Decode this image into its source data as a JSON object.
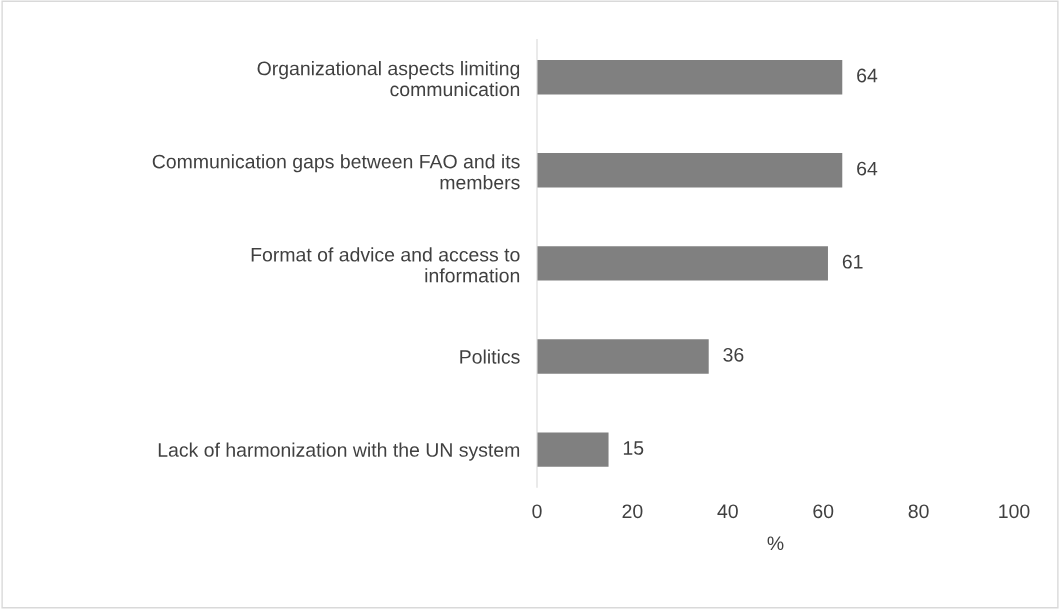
{
  "chart_data": {
    "type": "bar",
    "orientation": "horizontal",
    "categories": [
      "Organizational aspects limiting\ncommunication",
      "Communication gaps between FAO and its\nmembers",
      "Format of advice and access to\ninformation",
      "Politics",
      "Lack of harmonization with the UN system"
    ],
    "values": [
      64,
      64,
      61,
      36,
      15
    ],
    "color": "#808080",
    "xlim": [
      0,
      100
    ],
    "xticks": [
      0,
      20,
      40,
      60,
      80,
      100
    ],
    "xlabel": "%",
    "data_labels": true,
    "grid": false
  }
}
